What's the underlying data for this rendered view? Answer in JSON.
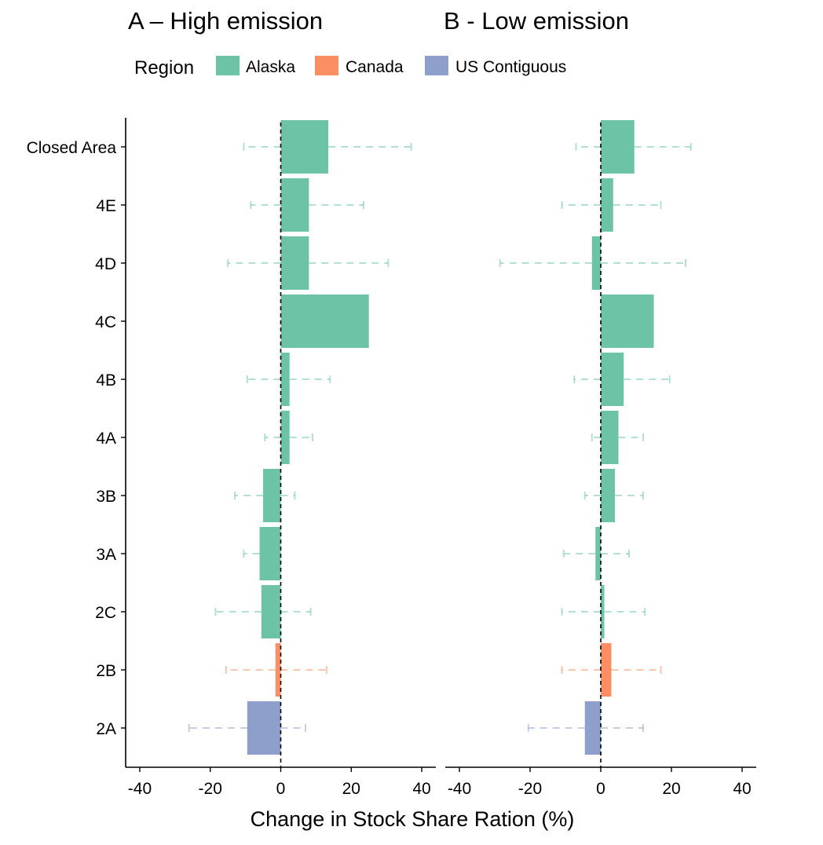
{
  "chart_data": {
    "type": "bar",
    "orientation": "horizontal",
    "legend": {
      "title": "Region",
      "placement": "top",
      "items": [
        {
          "name": "Alaska",
          "color": "#6cc3a5"
        },
        {
          "name": "Canada",
          "color": "#fb8e62"
        },
        {
          "name": "US Contiguous",
          "color": "#8f9fcb"
        }
      ]
    },
    "xlabel": "Change in Stock Share Ration (%)",
    "xlim": [
      -44,
      44
    ],
    "xticks": [
      -40,
      -20,
      0,
      20,
      40
    ],
    "categories": [
      "Closed Area",
      "4E",
      "4D",
      "4C",
      "4B",
      "4A",
      "3B",
      "3A",
      "2C",
      "2B",
      "2A"
    ],
    "category_regions": [
      "Alaska",
      "Alaska",
      "Alaska",
      "Alaska",
      "Alaska",
      "Alaska",
      "Alaska",
      "Alaska",
      "Alaska",
      "Canada",
      "US Contiguous"
    ],
    "reference_line": 0,
    "grid": false,
    "panels": [
      {
        "title": "A – High emission",
        "values": [
          13.5,
          8,
          8,
          25,
          2.5,
          2.5,
          -5,
          -6,
          -5.5,
          -1.5,
          -9.5
        ],
        "error_low": [
          -10.5,
          -8.5,
          -15,
          null,
          -9.5,
          -4.5,
          -13,
          -10.5,
          -18.5,
          -15.5,
          -26
        ],
        "error_high": [
          37,
          23.5,
          30.5,
          null,
          14,
          9,
          4,
          null,
          8.5,
          13,
          7
        ]
      },
      {
        "title": "B - Low emission",
        "values": [
          9.5,
          3.5,
          -2.5,
          15,
          6.5,
          5,
          4,
          -1.5,
          1,
          3,
          -4.5
        ],
        "error_low": [
          -7,
          -11,
          -28.5,
          null,
          -7.5,
          -2.5,
          -4.5,
          -10.5,
          -11,
          -11,
          -20.5
        ],
        "error_high": [
          25.5,
          17,
          24,
          null,
          19.5,
          12,
          12,
          8,
          12.5,
          17,
          12
        ]
      }
    ]
  }
}
